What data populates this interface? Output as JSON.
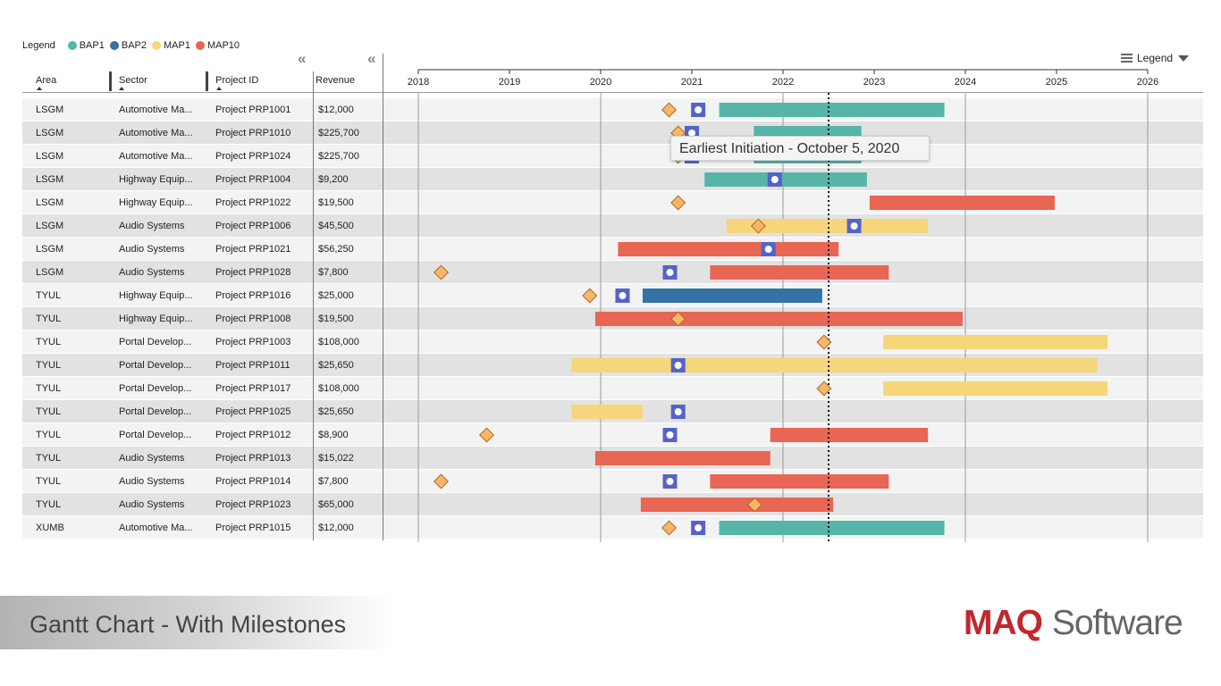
{
  "legend": {
    "title": "Legend",
    "items": [
      {
        "label": "BAP1",
        "color": "#56b5a8"
      },
      {
        "label": "BAP2",
        "color": "#3572a5"
      },
      {
        "label": "MAP1",
        "color": "#f5d67a"
      },
      {
        "label": "MAP10",
        "color": "#e86654"
      }
    ],
    "button_label": "Legend"
  },
  "columns": {
    "area": "Area",
    "sector": "Sector",
    "project_id": "Project ID",
    "revenue": "Revenue",
    "collapse_glyph": "«"
  },
  "tooltip": "Earliest Initiation - October 5, 2020",
  "footer": {
    "title": "Gantt Chart - With Milestones",
    "brand_bold": "MAQ",
    "brand_rest": "Software"
  },
  "chart_data": {
    "type": "gantt",
    "axis": {
      "ticks": [
        "2018",
        "2019",
        "2020",
        "2021",
        "2022",
        "2023",
        "2024",
        "2025",
        "2026"
      ],
      "range": [
        2018.0,
        2026.0
      ],
      "today_marker": 2022.5
    },
    "rows": [
      {
        "area": "LSGM",
        "sector": "Automotive Ma...",
        "project": "Project PRP1001",
        "revenue": "$12,000",
        "bar": {
          "start": 2021.3,
          "end": 2023.77,
          "type": "BAP1"
        },
        "diamond": 2020.75,
        "square": 2021.07
      },
      {
        "area": "LSGM",
        "sector": "Automotive Ma...",
        "project": "Project PRP1010",
        "revenue": "$225,700",
        "bar": {
          "start": 2021.68,
          "end": 2022.86,
          "type": "BAP1"
        },
        "diamond": 2020.85,
        "square": 2021.0
      },
      {
        "area": "LSGM",
        "sector": "Automotive Ma...",
        "project": "Project PRP1024",
        "revenue": "$225,700",
        "bar": {
          "start": 2021.68,
          "end": 2022.86,
          "type": "BAP1"
        },
        "diamond": 2020.85,
        "square": 2021.0
      },
      {
        "area": "LSGM",
        "sector": "Highway Equip...",
        "project": "Project PRP1004",
        "revenue": "$9,200",
        "bar": {
          "start": 2021.14,
          "end": 2022.92,
          "type": "BAP1"
        },
        "diamond": null,
        "square": 2021.91
      },
      {
        "area": "LSGM",
        "sector": "Highway Equip...",
        "project": "Project PRP1022",
        "revenue": "$19,500",
        "bar": {
          "start": 2022.95,
          "end": 2024.98,
          "type": "MAP10"
        },
        "diamond": 2020.85,
        "square": null
      },
      {
        "area": "LSGM",
        "sector": "Audio Systems",
        "project": "Project PRP1006",
        "revenue": "$45,500",
        "bar": {
          "start": 2021.38,
          "end": 2023.59,
          "type": "MAP1"
        },
        "diamond": 2021.73,
        "square": 2022.78
      },
      {
        "area": "LSGM",
        "sector": "Audio Systems",
        "project": "Project PRP1021",
        "revenue": "$56,250",
        "bar": {
          "start": 2020.19,
          "end": 2022.61,
          "type": "MAP10"
        },
        "diamond": null,
        "square": 2021.84
      },
      {
        "area": "LSGM",
        "sector": "Audio Systems",
        "project": "Project PRP1028",
        "revenue": "$7,800",
        "bar": {
          "start": 2021.2,
          "end": 2023.16,
          "type": "MAP10"
        },
        "diamond": 2018.25,
        "square": 2020.76
      },
      {
        "area": "TYUL",
        "sector": "Highway Equip...",
        "project": "Project PRP1016",
        "revenue": "$25,000",
        "bar": {
          "start": 2020.46,
          "end": 2022.43,
          "type": "BAP2"
        },
        "diamond": 2019.88,
        "square": 2020.24
      },
      {
        "area": "TYUL",
        "sector": "Highway Equip...",
        "project": "Project PRP1008",
        "revenue": "$19,500",
        "bar": {
          "start": 2019.94,
          "end": 2023.97,
          "type": "MAP10"
        },
        "diamond": 2020.85,
        "square": null
      },
      {
        "area": "TYUL",
        "sector": "Portal Develop...",
        "project": "Project PRP1003",
        "revenue": "$108,000",
        "bar": {
          "start": 2023.1,
          "end": 2025.56,
          "type": "MAP1"
        },
        "diamond": 2022.45,
        "square": null
      },
      {
        "area": "TYUL",
        "sector": "Portal Develop...",
        "project": "Project PRP1011",
        "revenue": "$25,650",
        "bar": {
          "start": 2019.68,
          "end": 2025.45,
          "type": "MAP1"
        },
        "diamond": null,
        "square": 2020.85
      },
      {
        "area": "TYUL",
        "sector": "Portal Develop...",
        "project": "Project PRP1017",
        "revenue": "$108,000",
        "bar": {
          "start": 2023.1,
          "end": 2025.56,
          "type": "MAP1"
        },
        "diamond": 2022.45,
        "square": null
      },
      {
        "area": "TYUL",
        "sector": "Portal Develop...",
        "project": "Project PRP1025",
        "revenue": "$25,650",
        "bar": {
          "start": 2019.68,
          "end": 2020.46,
          "type": "MAP1"
        },
        "diamond": null,
        "square": 2020.85
      },
      {
        "area": "TYUL",
        "sector": "Portal Develop...",
        "project": "Project PRP1012",
        "revenue": "$8,900",
        "bar": {
          "start": 2021.86,
          "end": 2023.59,
          "type": "MAP10"
        },
        "diamond": 2018.75,
        "square": 2020.76
      },
      {
        "area": "TYUL",
        "sector": "Audio Systems",
        "project": "Project PRP1013",
        "revenue": "$15,022",
        "bar": {
          "start": 2019.94,
          "end": 2021.86,
          "type": "MAP10"
        },
        "diamond": null,
        "square": null
      },
      {
        "area": "TYUL",
        "sector": "Audio Systems",
        "project": "Project PRP1014",
        "revenue": "$7,800",
        "bar": {
          "start": 2021.2,
          "end": 2023.16,
          "type": "MAP10"
        },
        "diamond": 2018.25,
        "square": 2020.76
      },
      {
        "area": "TYUL",
        "sector": "Audio Systems",
        "project": "Project PRP1023",
        "revenue": "$65,000",
        "bar": {
          "start": 2020.44,
          "end": 2022.55,
          "type": "MAP10"
        },
        "diamond": 2021.69,
        "square": null
      },
      {
        "area": "XUMB",
        "sector": "Automotive Ma...",
        "project": "Project PRP1015",
        "revenue": "$12,000",
        "bar": {
          "start": 2021.3,
          "end": 2023.77,
          "type": "BAP1"
        },
        "diamond": 2020.75,
        "square": 2021.07
      }
    ]
  }
}
